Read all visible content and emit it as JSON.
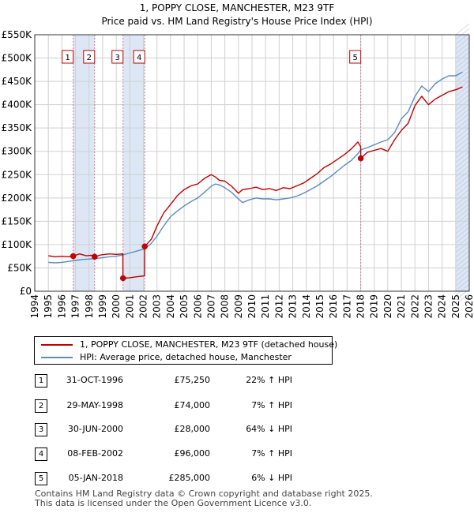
{
  "colors": {
    "property_line": "#c00000",
    "hpi_line": "#5b8ac6",
    "shade": "#dde6f5",
    "grid": "#d0d0d0",
    "marker": "#cc0000",
    "vline": "#d9768f"
  },
  "chart_data": {
    "type": "line",
    "title": "1, POPPY CLOSE, MANCHESTER, M23 9TF",
    "subtitle": "Price paid vs. HM Land Registry's House Price Index (HPI)",
    "xlabel": "",
    "ylabel": "",
    "xlim": [
      1994,
      2026
    ],
    "ylim": [
      0,
      550000
    ],
    "y_ticks": [
      0,
      50000,
      100000,
      150000,
      200000,
      250000,
      300000,
      350000,
      400000,
      450000,
      500000,
      550000
    ],
    "y_tick_labels": [
      "£0",
      "£50K",
      "£100K",
      "£150K",
      "£200K",
      "£250K",
      "£300K",
      "£350K",
      "£400K",
      "£450K",
      "£500K",
      "£550K"
    ],
    "x_ticks": [
      1994,
      1995,
      1996,
      1997,
      1998,
      1999,
      2000,
      2001,
      2002,
      2003,
      2004,
      2005,
      2006,
      2007,
      2008,
      2009,
      2010,
      2011,
      2012,
      2013,
      2014,
      2015,
      2016,
      2017,
      2018,
      2019,
      2020,
      2021,
      2022,
      2023,
      2024,
      2025,
      2026
    ],
    "x_tick_labels": [
      "1994",
      "1995",
      "1996",
      "1997",
      "1998",
      "1999",
      "2000",
      "2001",
      "2002",
      "2003",
      "2004",
      "2005",
      "2006",
      "2007",
      "2008",
      "2009",
      "2010",
      "2011",
      "2012",
      "2013",
      "2014",
      "2015",
      "2016",
      "2017",
      "2018",
      "2019",
      "2020",
      "2021",
      "2022",
      "2023",
      "2024",
      "2025",
      "2026"
    ],
    "grid": true,
    "shaded_periods": [
      [
        1996.83,
        1998.41
      ],
      [
        2000.5,
        2002.1
      ],
      [
        2025.0,
        2026.0
      ]
    ],
    "series": [
      {
        "name": "1, POPPY CLOSE, MANCHESTER, M23 9TF (detached house)",
        "x": [
          1995.0,
          1995.5,
          1996.0,
          1996.5,
          1996.83,
          1997.3,
          1997.8,
          1998.2,
          1998.41,
          1998.9,
          1999.5,
          2000.0,
          2000.49,
          2000.5,
          2001.0,
          2001.5,
          2002.09,
          2002.1,
          2002.6,
          2003.0,
          2003.5,
          2004.0,
          2004.5,
          2005.0,
          2005.5,
          2006.0,
          2006.5,
          2007.0,
          2007.3,
          2007.6,
          2008.0,
          2008.5,
          2009.0,
          2009.3,
          2009.8,
          2010.3,
          2010.8,
          2011.3,
          2011.8,
          2012.3,
          2012.8,
          2013.3,
          2013.8,
          2014.3,
          2014.8,
          2015.3,
          2015.8,
          2016.3,
          2016.8,
          2017.3,
          2017.8,
          2018.0,
          2018.01,
          2018.5,
          2019.0,
          2019.5,
          2020.0,
          2020.5,
          2021.0,
          2021.5,
          2022.0,
          2022.5,
          2023.0,
          2023.5,
          2024.0,
          2024.5,
          2025.0,
          2025.5
        ],
        "values": [
          76000,
          74000,
          75000,
          74000,
          75250,
          80000,
          76000,
          77000,
          74000,
          78000,
          80000,
          79000,
          80000,
          28000,
          29000,
          31000,
          33000,
          96000,
          112000,
          140000,
          168000,
          186000,
          205000,
          218000,
          226000,
          230000,
          242000,
          250000,
          245000,
          238000,
          236000,
          225000,
          210000,
          218000,
          220000,
          223000,
          218000,
          220000,
          216000,
          222000,
          220000,
          226000,
          232000,
          242000,
          252000,
          265000,
          273000,
          283000,
          293000,
          305000,
          320000,
          310000,
          285000,
          298000,
          302000,
          306000,
          300000,
          325000,
          345000,
          360000,
          398000,
          418000,
          400000,
          412000,
          420000,
          428000,
          432000,
          438000
        ]
      },
      {
        "name": "HPI: Average price, detached house, Manchester",
        "x": [
          1995.0,
          1995.5,
          1996.0,
          1996.5,
          1997.0,
          1997.5,
          1998.0,
          1998.5,
          1999.0,
          1999.5,
          2000.0,
          2000.5,
          2001.0,
          2001.5,
          2002.0,
          2002.5,
          2003.0,
          2003.5,
          2004.0,
          2004.5,
          2005.0,
          2005.5,
          2006.0,
          2006.5,
          2007.0,
          2007.3,
          2007.6,
          2008.0,
          2008.5,
          2009.0,
          2009.3,
          2009.8,
          2010.3,
          2010.8,
          2011.3,
          2011.8,
          2012.3,
          2012.8,
          2013.3,
          2013.8,
          2014.3,
          2014.8,
          2015.3,
          2015.8,
          2016.3,
          2016.8,
          2017.3,
          2017.8,
          2018.0,
          2018.5,
          2019.0,
          2019.5,
          2020.0,
          2020.5,
          2021.0,
          2021.5,
          2022.0,
          2022.5,
          2023.0,
          2023.5,
          2024.0,
          2024.5,
          2025.0,
          2025.5
        ],
        "values": [
          62000,
          61000,
          62000,
          64000,
          66000,
          68000,
          69000,
          70000,
          72000,
          74000,
          75000,
          78000,
          82000,
          86000,
          90000,
          100000,
          118000,
          140000,
          160000,
          172000,
          183000,
          192000,
          200000,
          212000,
          225000,
          230000,
          228000,
          222000,
          212000,
          198000,
          190000,
          196000,
          200000,
          198000,
          198000,
          196000,
          198000,
          200000,
          204000,
          210000,
          218000,
          226000,
          236000,
          246000,
          258000,
          270000,
          280000,
          295000,
          303000,
          308000,
          314000,
          320000,
          325000,
          340000,
          370000,
          385000,
          418000,
          440000,
          428000,
          445000,
          455000,
          462000,
          462000,
          470000
        ]
      }
    ],
    "markers": [
      {
        "label": "1",
        "x": 1996.83,
        "y": 75250
      },
      {
        "label": "2",
        "x": 1998.41,
        "y": 74000
      },
      {
        "label": "3",
        "x": 2000.5,
        "y": 28000
      },
      {
        "label": "4",
        "x": 2002.1,
        "y": 96000
      },
      {
        "label": "5",
        "x": 2018.01,
        "y": 285000
      }
    ]
  },
  "legend": {
    "items": [
      {
        "label": "1, POPPY CLOSE, MANCHESTER, M23 9TF (detached house)"
      },
      {
        "label": "HPI: Average price, detached house, Manchester"
      }
    ]
  },
  "sales": [
    {
      "num": "1",
      "date": "31-OCT-1996",
      "price": "£75,250",
      "hpi": "22% ↑ HPI"
    },
    {
      "num": "2",
      "date": "29-MAY-1998",
      "price": "£74,000",
      "hpi": "7% ↑ HPI"
    },
    {
      "num": "3",
      "date": "30-JUN-2000",
      "price": "£28,000",
      "hpi": "64% ↓ HPI"
    },
    {
      "num": "4",
      "date": "08-FEB-2002",
      "price": "£96,000",
      "hpi": "7% ↑ HPI"
    },
    {
      "num": "5",
      "date": "05-JAN-2018",
      "price": "£285,000",
      "hpi": "6% ↓ HPI"
    }
  ],
  "footer": {
    "line1": "Contains HM Land Registry data © Crown copyright and database right 2025.",
    "line2": "This data is licensed under the Open Government Licence v3.0."
  }
}
